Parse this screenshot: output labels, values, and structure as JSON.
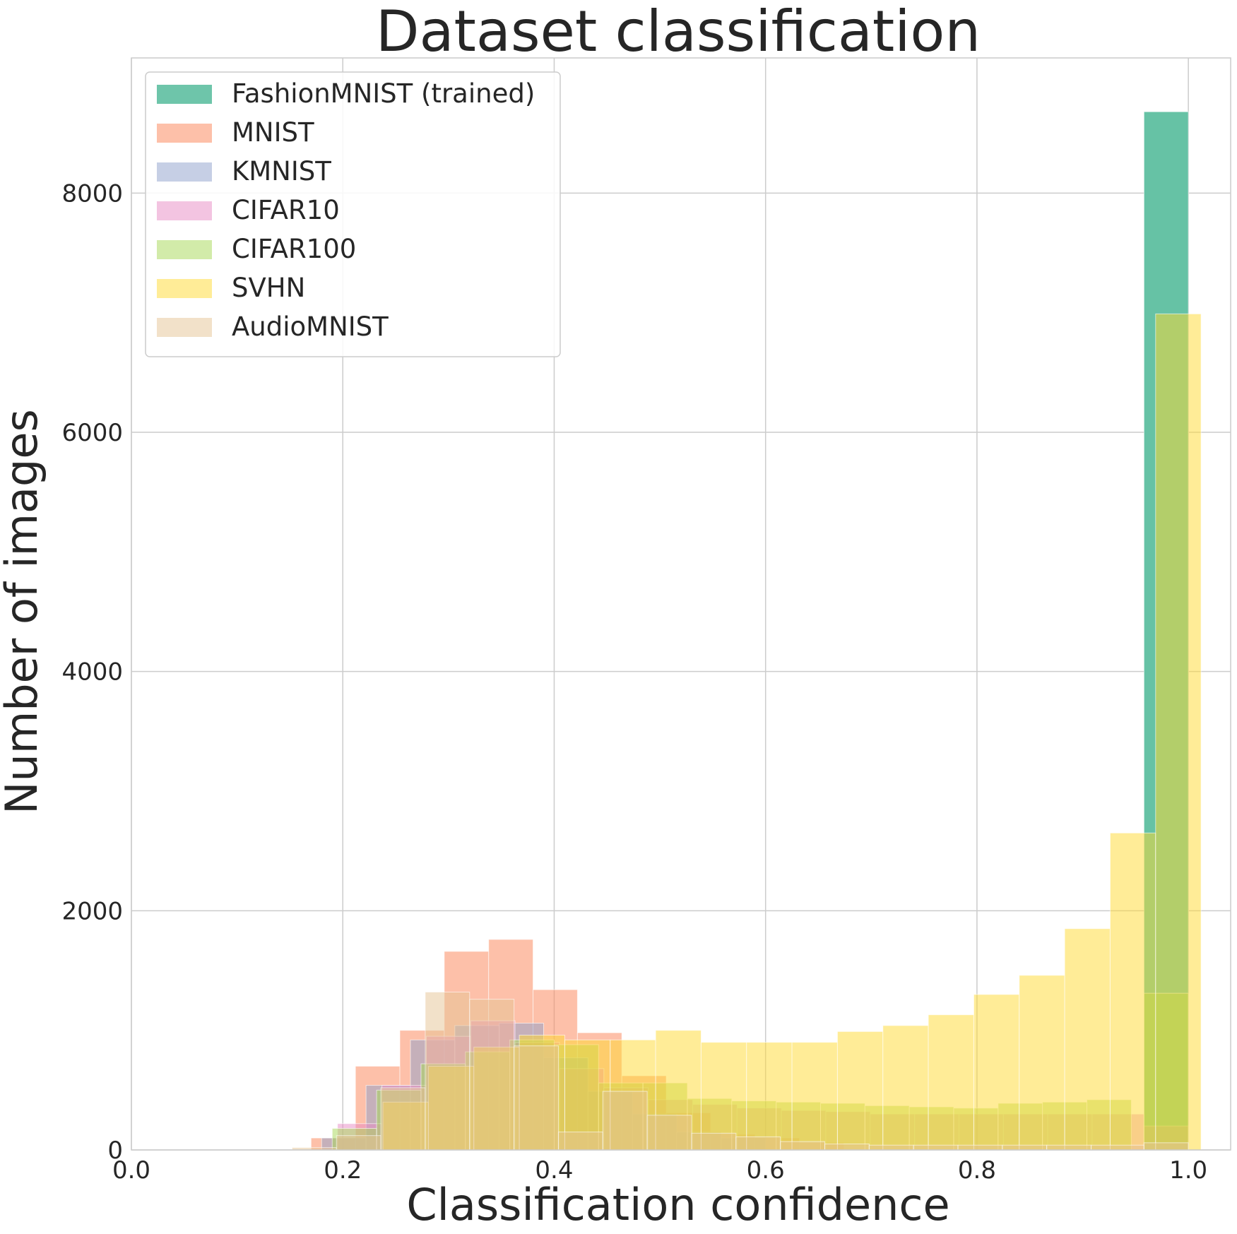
{
  "chart_data": {
    "type": "histogram",
    "title": "Dataset classification",
    "xlabel": "Classification confidence",
    "ylabel": "Number of images",
    "xlim": [
      0.0,
      1.04
    ],
    "ylim": [
      0,
      9130
    ],
    "xticks": [
      "0.0",
      "0.2",
      "0.4",
      "0.6",
      "0.8",
      "1.0"
    ],
    "xtick_values": [
      0.0,
      0.2,
      0.4,
      0.6,
      0.8,
      1.0
    ],
    "yticks": [
      "0",
      "2000",
      "4000",
      "6000",
      "8000"
    ],
    "ytick_values": [
      0,
      2000,
      4000,
      6000,
      8000
    ],
    "grid": true,
    "legend_position": "top-left",
    "series": [
      {
        "name": "FashionMNIST (trained)",
        "color": "#66c2a5",
        "opacity": 1.0,
        "bins": [
          {
            "x0": 0.958,
            "x1": 1.0,
            "count": 8680
          }
        ]
      },
      {
        "name": "MNIST",
        "color": "#fc8d62",
        "opacity": 0.55,
        "bins": [
          {
            "x0": 0.17,
            "x1": 0.212,
            "count": 100
          },
          {
            "x0": 0.212,
            "x1": 0.254,
            "count": 700
          },
          {
            "x0": 0.254,
            "x1": 0.296,
            "count": 1000
          },
          {
            "x0": 0.296,
            "x1": 0.338,
            "count": 1660
          },
          {
            "x0": 0.338,
            "x1": 0.38,
            "count": 1760
          },
          {
            "x0": 0.38,
            "x1": 0.422,
            "count": 1340
          },
          {
            "x0": 0.422,
            "x1": 0.464,
            "count": 980
          },
          {
            "x0": 0.464,
            "x1": 0.506,
            "count": 620
          },
          {
            "x0": 0.506,
            "x1": 0.548,
            "count": 310
          },
          {
            "x0": 0.548,
            "x1": 0.59,
            "count": 130
          },
          {
            "x0": 0.59,
            "x1": 0.632,
            "count": 100
          },
          {
            "x0": 0.632,
            "x1": 0.674,
            "count": 60
          }
        ]
      },
      {
        "name": "KMNIST",
        "color": "#8da0cb",
        "opacity": 0.5,
        "bins": [
          {
            "x0": 0.18,
            "x1": 0.222,
            "count": 100
          },
          {
            "x0": 0.222,
            "x1": 0.264,
            "count": 540
          },
          {
            "x0": 0.264,
            "x1": 0.306,
            "count": 920
          },
          {
            "x0": 0.306,
            "x1": 0.348,
            "count": 1040
          },
          {
            "x0": 0.348,
            "x1": 0.39,
            "count": 1060
          },
          {
            "x0": 0.39,
            "x1": 0.432,
            "count": 770
          },
          {
            "x0": 0.432,
            "x1": 0.474,
            "count": 490
          },
          {
            "x0": 0.474,
            "x1": 0.516,
            "count": 300
          },
          {
            "x0": 0.516,
            "x1": 0.558,
            "count": 150
          },
          {
            "x0": 0.558,
            "x1": 0.6,
            "count": 100
          }
        ]
      },
      {
        "name": "CIFAR10",
        "color": "#e78ac3",
        "opacity": 0.5,
        "bins": [
          {
            "x0": 0.195,
            "x1": 0.237,
            "count": 220
          },
          {
            "x0": 0.237,
            "x1": 0.279,
            "count": 540
          },
          {
            "x0": 0.279,
            "x1": 0.321,
            "count": 950
          },
          {
            "x0": 0.321,
            "x1": 0.363,
            "count": 1080
          },
          {
            "x0": 0.363,
            "x1": 0.405,
            "count": 900
          },
          {
            "x0": 0.405,
            "x1": 0.447,
            "count": 680
          },
          {
            "x0": 0.447,
            "x1": 0.489,
            "count": 520
          },
          {
            "x0": 0.489,
            "x1": 0.531,
            "count": 420
          },
          {
            "x0": 0.531,
            "x1": 0.573,
            "count": 380
          },
          {
            "x0": 0.573,
            "x1": 0.615,
            "count": 350
          },
          {
            "x0": 0.615,
            "x1": 0.657,
            "count": 330
          },
          {
            "x0": 0.657,
            "x1": 0.699,
            "count": 320
          },
          {
            "x0": 0.699,
            "x1": 0.741,
            "count": 300
          },
          {
            "x0": 0.741,
            "x1": 0.783,
            "count": 300
          },
          {
            "x0": 0.783,
            "x1": 0.825,
            "count": 300
          },
          {
            "x0": 0.825,
            "x1": 0.867,
            "count": 300
          },
          {
            "x0": 0.867,
            "x1": 0.909,
            "count": 300
          },
          {
            "x0": 0.909,
            "x1": 0.958,
            "count": 300
          },
          {
            "x0": 0.958,
            "x1": 1.0,
            "count": 200
          }
        ]
      },
      {
        "name": "CIFAR100",
        "color": "#a6d854",
        "opacity": 0.5,
        "bins": [
          {
            "x0": 0.19,
            "x1": 0.232,
            "count": 180
          },
          {
            "x0": 0.232,
            "x1": 0.274,
            "count": 500
          },
          {
            "x0": 0.274,
            "x1": 0.316,
            "count": 720
          },
          {
            "x0": 0.316,
            "x1": 0.358,
            "count": 820
          },
          {
            "x0": 0.358,
            "x1": 0.4,
            "count": 920
          },
          {
            "x0": 0.4,
            "x1": 0.442,
            "count": 880
          },
          {
            "x0": 0.442,
            "x1": 0.484,
            "count": 560
          },
          {
            "x0": 0.484,
            "x1": 0.526,
            "count": 560
          },
          {
            "x0": 0.526,
            "x1": 0.568,
            "count": 430
          },
          {
            "x0": 0.568,
            "x1": 0.61,
            "count": 410
          },
          {
            "x0": 0.61,
            "x1": 0.652,
            "count": 400
          },
          {
            "x0": 0.652,
            "x1": 0.694,
            "count": 390
          },
          {
            "x0": 0.694,
            "x1": 0.736,
            "count": 370
          },
          {
            "x0": 0.736,
            "x1": 0.778,
            "count": 360
          },
          {
            "x0": 0.778,
            "x1": 0.82,
            "count": 350
          },
          {
            "x0": 0.82,
            "x1": 0.862,
            "count": 390
          },
          {
            "x0": 0.862,
            "x1": 0.904,
            "count": 400
          },
          {
            "x0": 0.904,
            "x1": 0.946,
            "count": 420
          },
          {
            "x0": 0.958,
            "x1": 1.0,
            "count": 1310
          }
        ]
      },
      {
        "name": "SVHN",
        "color": "#ffd92f",
        "opacity": 0.5,
        "bins": [
          {
            "x0": 0.238,
            "x1": 0.281,
            "count": 400
          },
          {
            "x0": 0.281,
            "x1": 0.324,
            "count": 700
          },
          {
            "x0": 0.324,
            "x1": 0.367,
            "count": 860
          },
          {
            "x0": 0.367,
            "x1": 0.41,
            "count": 960
          },
          {
            "x0": 0.41,
            "x1": 0.453,
            "count": 920
          },
          {
            "x0": 0.453,
            "x1": 0.496,
            "count": 920
          },
          {
            "x0": 0.496,
            "x1": 0.539,
            "count": 1000
          },
          {
            "x0": 0.539,
            "x1": 0.582,
            "count": 900
          },
          {
            "x0": 0.582,
            "x1": 0.625,
            "count": 900
          },
          {
            "x0": 0.625,
            "x1": 0.668,
            "count": 900
          },
          {
            "x0": 0.668,
            "x1": 0.711,
            "count": 990
          },
          {
            "x0": 0.711,
            "x1": 0.754,
            "count": 1040
          },
          {
            "x0": 0.754,
            "x1": 0.797,
            "count": 1130
          },
          {
            "x0": 0.797,
            "x1": 0.84,
            "count": 1300
          },
          {
            "x0": 0.84,
            "x1": 0.883,
            "count": 1460
          },
          {
            "x0": 0.883,
            "x1": 0.926,
            "count": 1850
          },
          {
            "x0": 0.926,
            "x1": 0.969,
            "count": 2650
          },
          {
            "x0": 0.969,
            "x1": 1.012,
            "count": 6990
          }
        ]
      },
      {
        "name": "AudioMNIST",
        "color": "#e5c494",
        "opacity": 0.5,
        "bins": [
          {
            "x0": 0.152,
            "x1": 0.194,
            "count": 20
          },
          {
            "x0": 0.194,
            "x1": 0.236,
            "count": 120
          },
          {
            "x0": 0.236,
            "x1": 0.278,
            "count": 520
          },
          {
            "x0": 0.278,
            "x1": 0.32,
            "count": 1320
          },
          {
            "x0": 0.32,
            "x1": 0.362,
            "count": 1260
          },
          {
            "x0": 0.362,
            "x1": 0.404,
            "count": 870
          },
          {
            "x0": 0.404,
            "x1": 0.446,
            "count": 150
          },
          {
            "x0": 0.446,
            "x1": 0.488,
            "count": 490
          },
          {
            "x0": 0.488,
            "x1": 0.53,
            "count": 290
          },
          {
            "x0": 0.53,
            "x1": 0.572,
            "count": 140
          },
          {
            "x0": 0.572,
            "x1": 0.614,
            "count": 110
          },
          {
            "x0": 0.614,
            "x1": 0.656,
            "count": 70
          },
          {
            "x0": 0.656,
            "x1": 0.698,
            "count": 50
          },
          {
            "x0": 0.698,
            "x1": 0.74,
            "count": 40
          },
          {
            "x0": 0.74,
            "x1": 0.782,
            "count": 40
          },
          {
            "x0": 0.782,
            "x1": 0.824,
            "count": 40
          },
          {
            "x0": 0.824,
            "x1": 0.866,
            "count": 40
          },
          {
            "x0": 0.866,
            "x1": 0.908,
            "count": 40
          },
          {
            "x0": 0.908,
            "x1": 0.958,
            "count": 40
          },
          {
            "x0": 0.958,
            "x1": 1.0,
            "count": 60
          }
        ]
      }
    ]
  }
}
